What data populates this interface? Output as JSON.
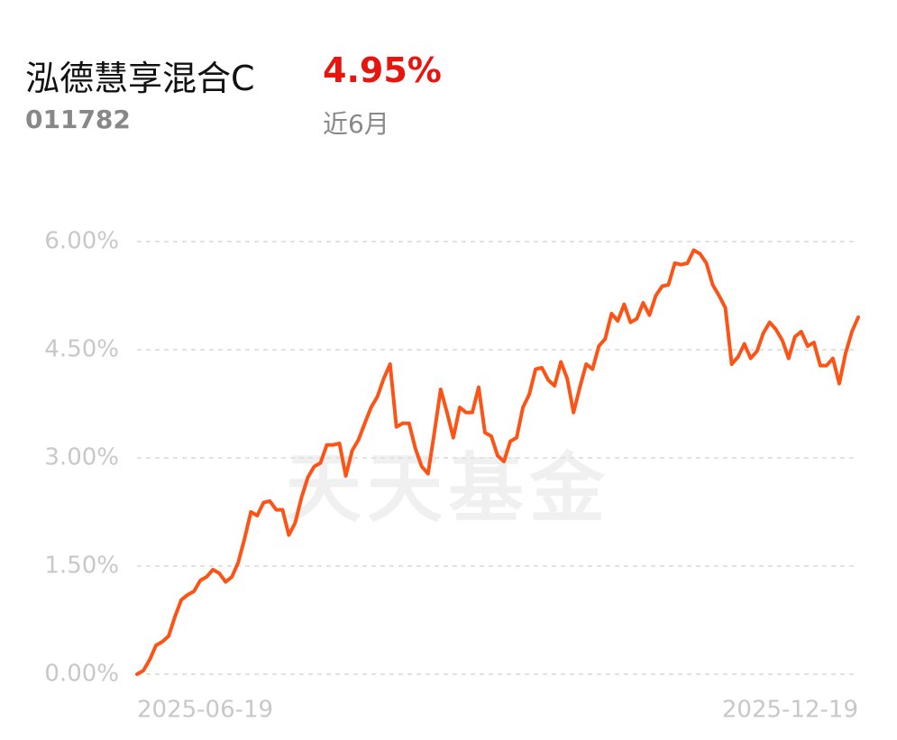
{
  "header": {
    "title": "泓德慧享混合C",
    "return": "4.95%",
    "code": "011782",
    "period": "近6月"
  },
  "chart_data": {
    "type": "line",
    "watermark": "天天基金",
    "color": "#fb5416",
    "grid": true,
    "ylim": [
      0,
      6
    ],
    "yticks": [
      {
        "value": 0,
        "label": "0.00%"
      },
      {
        "value": 1.5,
        "label": "1.50%"
      },
      {
        "value": 3,
        "label": "3.00%"
      },
      {
        "value": 4.5,
        "label": "4.50%"
      },
      {
        "value": 6,
        "label": "6.00%"
      }
    ],
    "categories": [
      "2025-06-19",
      null,
      null,
      null,
      null,
      null,
      null,
      null,
      null,
      null,
      null,
      null,
      null,
      null,
      null,
      null,
      null,
      null,
      null,
      null,
      null,
      null,
      null,
      null,
      null,
      null,
      null,
      null,
      null,
      null,
      null,
      null,
      null,
      null,
      null,
      null,
      null,
      null,
      null,
      null,
      null,
      null,
      null,
      null,
      null,
      null,
      null,
      null,
      null,
      null,
      null,
      null,
      null,
      null,
      null,
      null,
      null,
      null,
      null,
      null,
      null,
      null,
      null,
      null,
      null,
      null,
      null,
      null,
      null,
      null,
      null,
      null,
      null,
      null,
      null,
      null,
      null,
      null,
      null,
      null,
      null,
      null,
      null,
      null,
      null,
      null,
      null,
      null,
      null,
      null,
      null,
      null,
      null,
      null,
      null,
      null,
      null,
      null,
      null,
      null,
      null,
      null,
      null,
      null,
      null,
      null,
      null,
      null,
      null,
      null,
      null,
      null,
      null,
      null,
      "2025-12-19"
    ],
    "values": [
      0,
      0.05,
      0.2,
      0.4,
      0.45,
      0.53,
      0.8,
      1.03,
      1.1,
      1.15,
      1.3,
      1.35,
      1.45,
      1.4,
      1.28,
      1.35,
      1.55,
      1.88,
      2.25,
      2.2,
      2.38,
      2.4,
      2.28,
      2.28,
      1.93,
      2.1,
      2.45,
      2.73,
      2.88,
      2.93,
      3.18,
      3.18,
      3.2,
      2.75,
      3.1,
      3.25,
      3.48,
      3.7,
      3.85,
      4.1,
      4.3,
      3.43,
      3.48,
      3.48,
      3.13,
      2.88,
      2.78,
      3.35,
      3.95,
      3.63,
      3.28,
      3.7,
      3.63,
      3.63,
      3.98,
      3.35,
      3.3,
      3.03,
      2.95,
      3.23,
      3.28,
      3.7,
      3.88,
      4.23,
      4.25,
      4.08,
      4.0,
      4.33,
      4.1,
      3.63,
      3.98,
      4.3,
      4.23,
      4.55,
      4.65,
      5.0,
      4.9,
      5.13,
      4.88,
      4.93,
      5.15,
      4.98,
      5.25,
      5.38,
      5.4,
      5.7,
      5.68,
      5.7,
      5.88,
      5.83,
      5.7,
      5.4,
      5.25,
      5.08,
      4.3,
      4.4,
      4.58,
      4.38,
      4.48,
      4.73,
      4.88,
      4.78,
      4.63,
      4.38,
      4.68,
      4.75,
      4.55,
      4.6,
      4.28,
      4.28,
      4.38,
      4.03,
      4.45,
      4.75,
      4.95
    ]
  }
}
